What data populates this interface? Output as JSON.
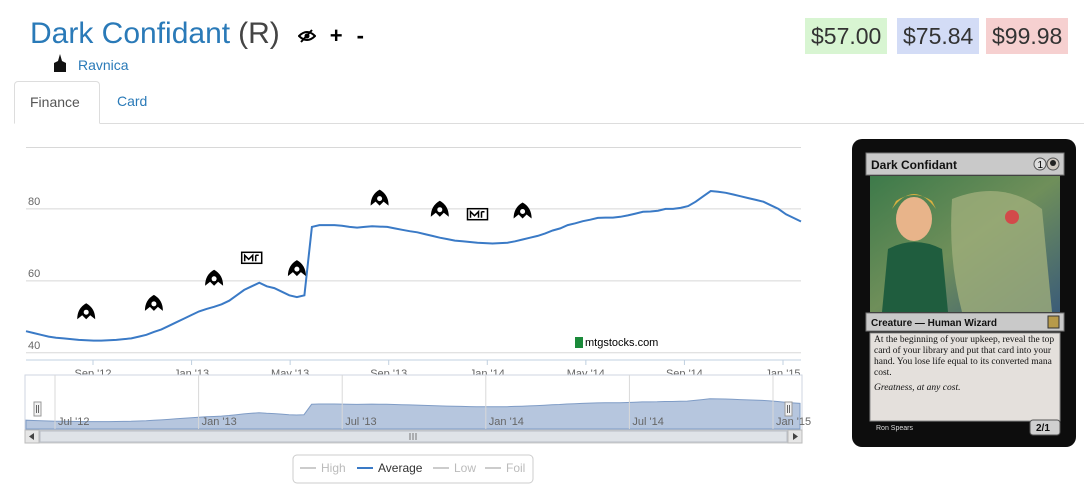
{
  "card": {
    "name": "Dark Confidant",
    "rarity": "(R)",
    "set": "Ravnica"
  },
  "actions": {
    "watch_icon": "eye-slash-icon",
    "add_label": "+",
    "remove_label": "-"
  },
  "prices": {
    "low": "$57.00",
    "average": "$75.84",
    "high": "$99.98",
    "colors": {
      "low": "#d8f5d2",
      "average": "#d3dcf6",
      "high": "#f6d0d0"
    }
  },
  "tabs": [
    {
      "label": "Finance",
      "active": true
    },
    {
      "label": "Card",
      "active": false
    }
  ],
  "chart_data": {
    "type": "line",
    "x_tick_labels": [
      "Sep '12",
      "Jan '13",
      "May '13",
      "Sep '13",
      "Jan '14",
      "May '14",
      "Sep '14",
      "Jan '15"
    ],
    "y_tick_labels": [
      "40",
      "60",
      "80"
    ],
    "ylim": [
      38,
      100
    ],
    "grid": true,
    "watermark": "mtgstocks.com",
    "series": [
      {
        "name": "Average",
        "color": "#3a7ac6",
        "values": [
          46,
          45.5,
          45,
          44.5,
          44.2,
          44,
          43.8,
          43.6,
          43.5,
          43.4,
          43.4,
          43.5,
          43.6,
          43.8,
          44,
          44.5,
          45,
          45.8,
          46.5,
          47.5,
          48.5,
          49.5,
          50.5,
          51.5,
          52.2,
          52.8,
          53.5,
          54.5,
          56,
          57.5,
          58.5,
          59.5,
          58.5,
          58,
          57,
          56,
          55.5,
          56,
          75,
          75.5,
          75.5,
          75.5,
          75.3,
          75,
          74.8,
          75,
          75.2,
          75.1,
          75,
          74.6,
          74.2,
          73.8,
          73.5,
          73,
          72.5,
          72,
          71.6,
          71.2,
          71,
          70.8,
          70.6,
          70.5,
          70.4,
          70.5,
          70.6,
          71,
          71.5,
          72,
          72.5,
          73.2,
          74,
          74.6,
          75.5,
          76,
          76.6,
          77,
          77.5,
          77.6,
          77.6,
          77.8,
          78.2,
          78.7,
          79.2,
          79.3,
          79.5,
          80,
          80,
          80.3,
          80.8,
          82,
          83.5,
          85,
          84.8,
          84.5,
          84,
          83.5,
          83,
          82.5,
          82,
          81,
          80,
          78.5,
          77.5,
          76.5
        ]
      },
      {
        "name": "High",
        "enabled": false
      },
      {
        "name": "Low",
        "enabled": false
      },
      {
        "name": "Foil",
        "enabled": false
      }
    ],
    "set_release_markers": [
      {
        "icon": "return-to-ravnica-icon",
        "x_index": 8
      },
      {
        "icon": "gatecrash-icon",
        "x_index": 17
      },
      {
        "icon": "dragons-maze-icon",
        "x_index": 25
      },
      {
        "icon": "m14-icon",
        "x_index": 30
      },
      {
        "icon": "theros-icon",
        "x_index": 36
      },
      {
        "icon": "born-of-the-gods-icon",
        "x_index": 47
      },
      {
        "icon": "journey-into-nyx-icon",
        "x_index": 55
      },
      {
        "icon": "m15-icon",
        "x_index": 60
      },
      {
        "icon": "khans-of-tarkir-icon",
        "x_index": 66
      }
    ],
    "navigator": {
      "tick_labels": [
        "Jul '12",
        "Jan '13",
        "Jul '13",
        "Jan '14",
        "Jul '14",
        "Jan '15"
      ]
    },
    "legend": {
      "placement": "bottom",
      "items": [
        "High",
        "Average",
        "Low",
        "Foil"
      ]
    }
  },
  "card_image": {
    "name": "Dark Confidant",
    "mana_cost": "1",
    "type_line": "Creature — Human Wizard",
    "rules_text": "At the beginning of your upkeep, reveal the top card of your library and put that card into your hand. You lose life equal to its converted mana cost.",
    "flavor_text": "Greatness, at any cost.",
    "artist": "Ron Spears",
    "power_toughness": "2/1"
  }
}
